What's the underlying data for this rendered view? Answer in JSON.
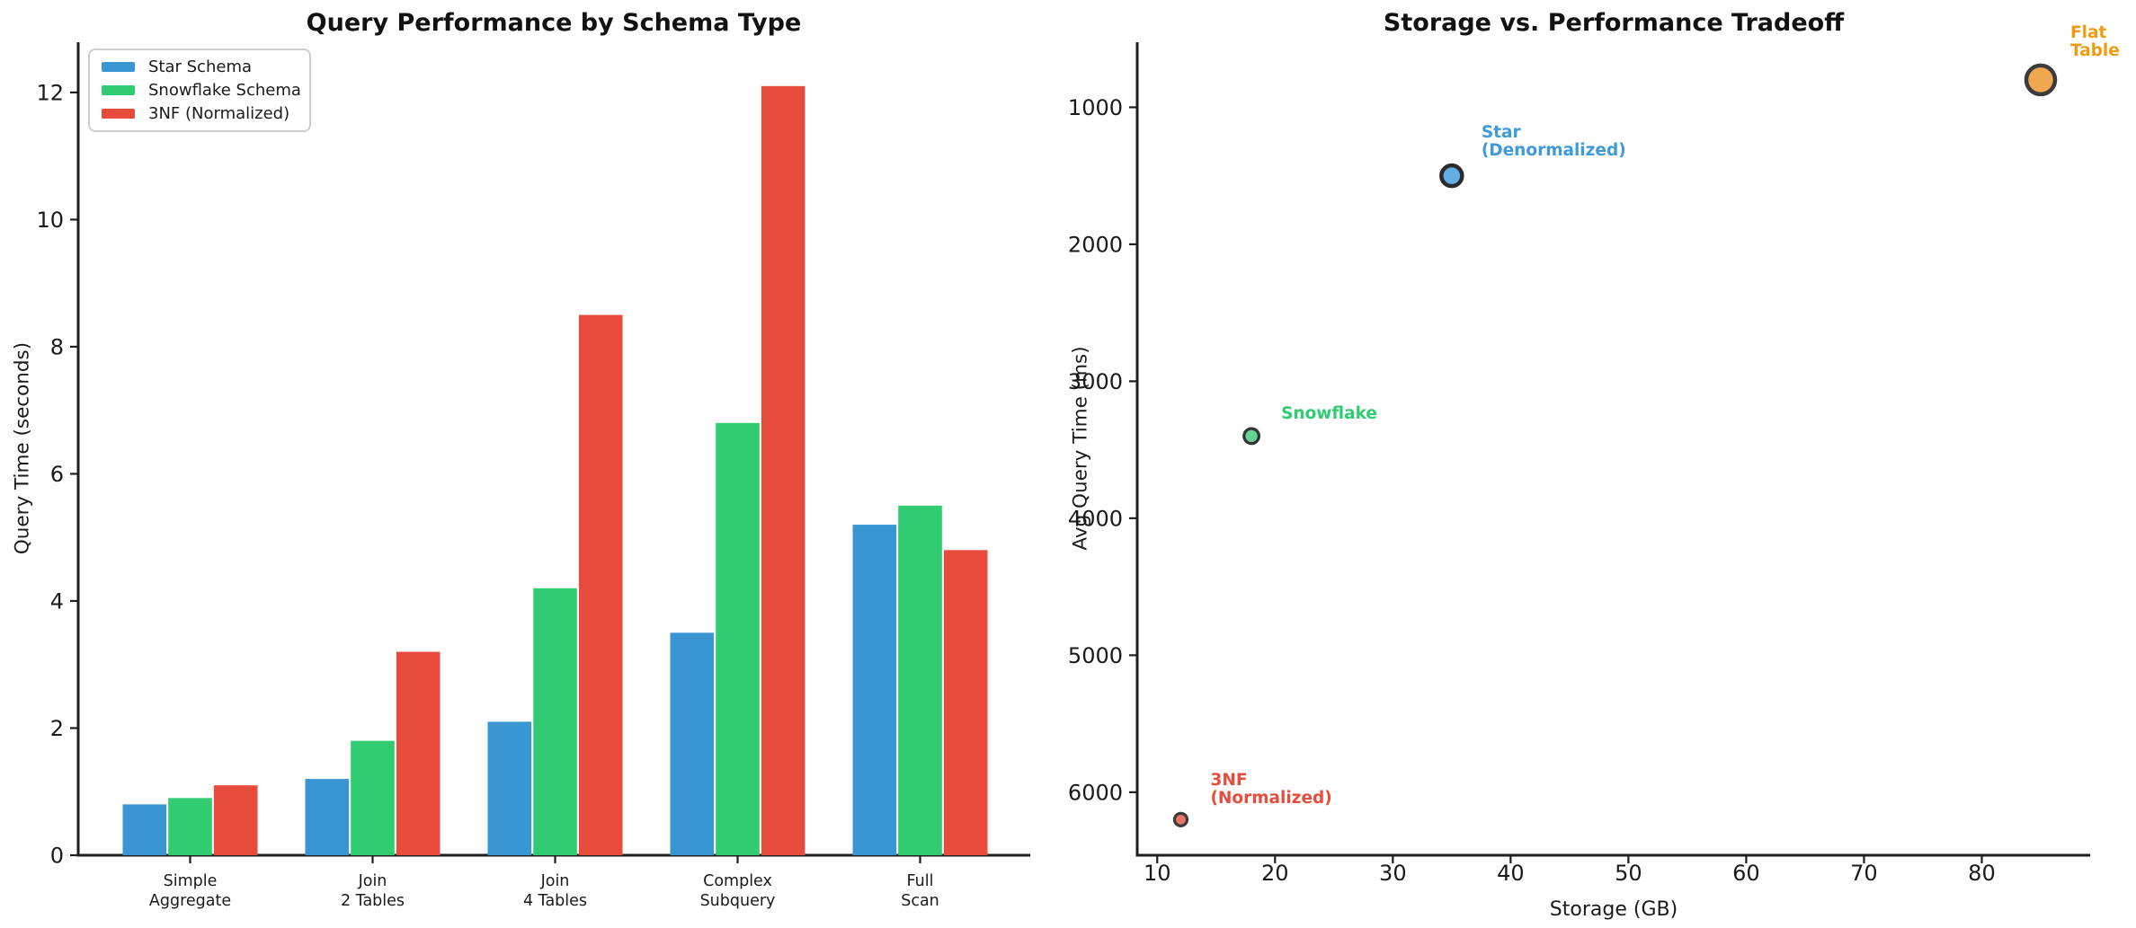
{
  "figure": {
    "background": "#ffffff",
    "axis_color": "#1e1e1e"
  },
  "chart_data": [
    {
      "type": "bar",
      "title": "Query Performance by Schema Type",
      "xlabel": "",
      "ylabel": "Query Time (seconds)",
      "categories": [
        "Simple\nAggregate",
        "Join\n2 Tables",
        "Join\n4 Tables",
        "Complex\nSubquery",
        "Full\nScan"
      ],
      "yticks": [
        0,
        2,
        4,
        6,
        8,
        10,
        12
      ],
      "ylim": [
        0,
        12.79
      ],
      "grid": false,
      "legend_position": "upper-left",
      "series": [
        {
          "name": "Star Schema",
          "color": "#3a96d3",
          "values": [
            0.8,
            1.2,
            2.1,
            3.5,
            5.2
          ]
        },
        {
          "name": "Snowflake Schema",
          "color": "#31cb71",
          "values": [
            0.9,
            1.8,
            4.2,
            6.8,
            5.5
          ]
        },
        {
          "name": "3NF (Normalized)",
          "color": "#e64b3b",
          "values": [
            1.1,
            3.2,
            8.5,
            12.1,
            4.8
          ]
        }
      ]
    },
    {
      "type": "scatter",
      "title": "Storage vs. Performance Tradeoff",
      "xlabel": "Storage (GB)",
      "ylabel": "Avg Query Time (ms)",
      "xticks": [
        10,
        20,
        30,
        40,
        50,
        60,
        70,
        80
      ],
      "yticks": [
        1000,
        2000,
        3000,
        4000,
        5000,
        6000
      ],
      "xlim": [
        8.3,
        89.2
      ],
      "ylim": [
        525,
        6460
      ],
      "y_inverted": true,
      "grid": false,
      "points": [
        {
          "label": "Flat\nTable",
          "x": 85,
          "y": 800,
          "radius": 16,
          "fill": "#f1a74f",
          "edge": "#3b3b3b",
          "label_color": "#ef9b10"
        },
        {
          "label": "Star\n(Denormalized)",
          "x": 35,
          "y": 1500,
          "radius": 11.5,
          "fill": "#63aee3",
          "edge": "#2b2b2b",
          "label_color": "#3e9ad9"
        },
        {
          "label": "Snowflake",
          "x": 18,
          "y": 3400,
          "radius": 8.3,
          "fill": "#62d592",
          "edge": "#333333",
          "label_color": "#2fcc74"
        },
        {
          "label": "3NF\n(Normalized)",
          "x": 12,
          "y": 6200,
          "radius": 7,
          "fill": "#e8756a",
          "edge": "#3b3b3b",
          "label_color": "#e74c3c"
        }
      ]
    }
  ]
}
